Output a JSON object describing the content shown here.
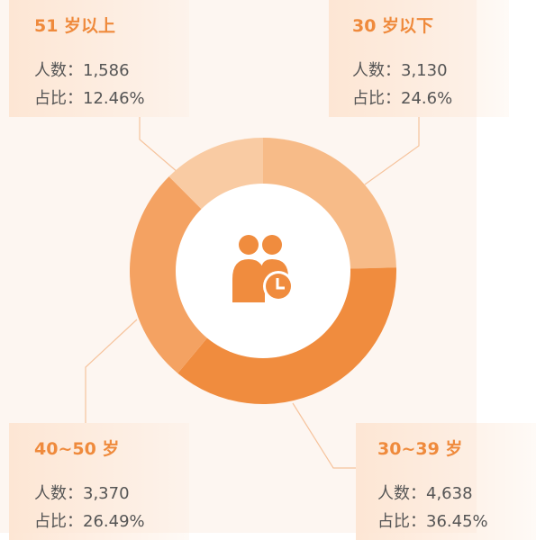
{
  "chart_data": {
    "type": "donut",
    "count_label": "人数：",
    "share_label": "占比：",
    "categories": [
      "30 岁以下",
      "30~39 岁",
      "40~50 岁",
      "51 岁以上"
    ],
    "values": [
      3130,
      4638,
      3370,
      1586
    ],
    "value_labels": [
      "3,130",
      "4,638",
      "3,370",
      "1,586"
    ],
    "shares": [
      24.6,
      36.45,
      26.49,
      12.46
    ],
    "share_labels": [
      "24.6%",
      "36.45%",
      "26.49%",
      "12.46%"
    ],
    "colors": [
      "#f7bb88",
      "#f08c3e",
      "#f4a262",
      "#f9cba3"
    ]
  }
}
